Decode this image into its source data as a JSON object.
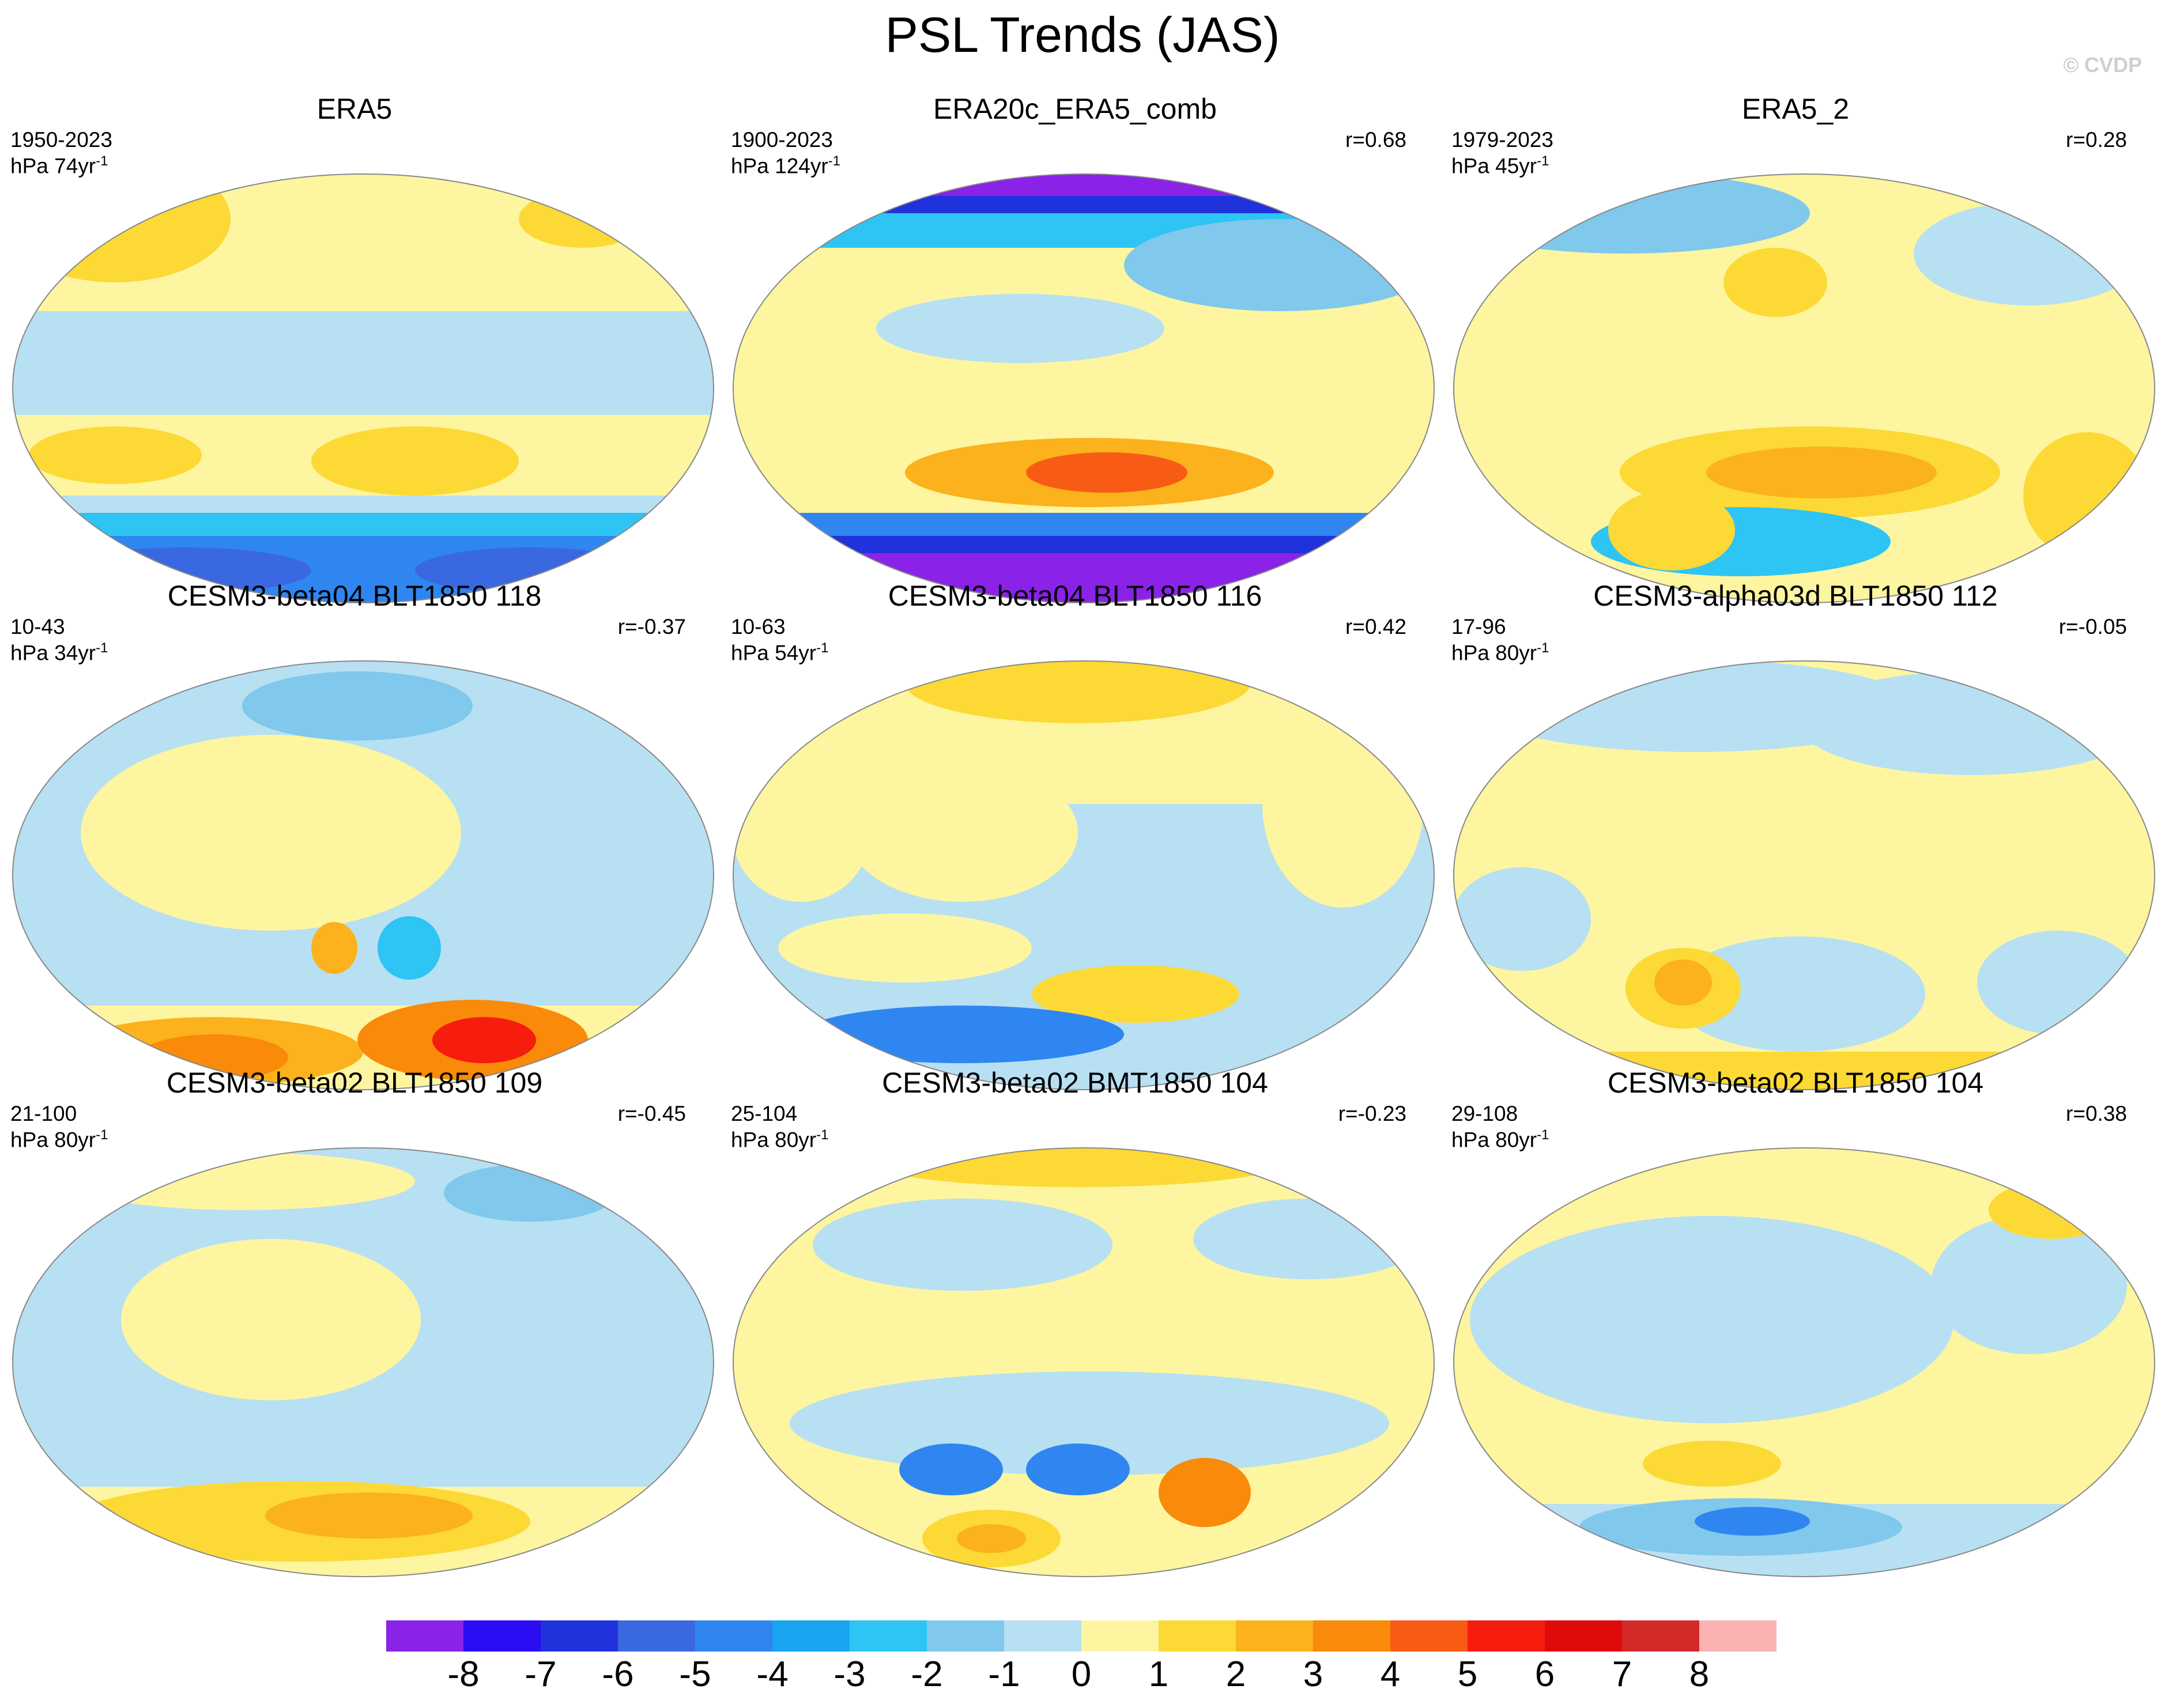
{
  "title": "PSL Trends (JAS)",
  "copyright": "© CVDP",
  "panels": [
    {
      "title": "ERA5",
      "period": "1950-2023",
      "units_prefix": "hPa 74yr",
      "units_exp": "-1",
      "r": ""
    },
    {
      "title": "ERA20c_ERA5_comb",
      "period": "1900-2023",
      "units_prefix": "hPa 124yr",
      "units_exp": "-1",
      "r": "r=0.68"
    },
    {
      "title": "ERA5_2",
      "period": "1979-2023",
      "units_prefix": "hPa 45yr",
      "units_exp": "-1",
      "r": "r=0.28"
    },
    {
      "title": "CESM3-beta04 BLT1850 118",
      "period": "10-43",
      "units_prefix": "hPa 34yr",
      "units_exp": "-1",
      "r": "r=-0.37"
    },
    {
      "title": "CESM3-beta04 BLT1850 116",
      "period": "10-63",
      "units_prefix": "hPa 54yr",
      "units_exp": "-1",
      "r": "r=0.42"
    },
    {
      "title": "CESM3-alpha03d BLT1850 112",
      "period": "17-96",
      "units_prefix": "hPa 80yr",
      "units_exp": "-1",
      "r": "r=-0.05"
    },
    {
      "title": "CESM3-beta02 BLT1850 109",
      "period": "21-100",
      "units_prefix": "hPa 80yr",
      "units_exp": "-1",
      "r": "r=-0.45"
    },
    {
      "title": "CESM3-beta02 BMT1850 104",
      "period": "25-104",
      "units_prefix": "hPa 80yr",
      "units_exp": "-1",
      "r": "r=-0.23"
    },
    {
      "title": "CESM3-beta02 BLT1850 104",
      "period": "29-108",
      "units_prefix": "hPa 80yr",
      "units_exp": "-1",
      "r": "r=0.38"
    }
  ],
  "colorbar": {
    "colors": [
      "#8a22e8",
      "#2a0cf5",
      "#2032dc",
      "#3a68e0",
      "#2f86f0",
      "#19a4f0",
      "#2ec4f4",
      "#80c8ec",
      "#b7e0f3",
      "#fdf5a0",
      "#fcd935",
      "#fbb21c",
      "#f98a0a",
      "#f85c14",
      "#f61c0e",
      "#e00a0a",
      "#d32a2a",
      "#fbb2b2"
    ],
    "labels": [
      "-8",
      "-7",
      "-6",
      "-5",
      "-4",
      "-3",
      "-2",
      "-1",
      "0",
      "1",
      "2",
      "3",
      "4",
      "5",
      "6",
      "7",
      "8"
    ]
  }
}
